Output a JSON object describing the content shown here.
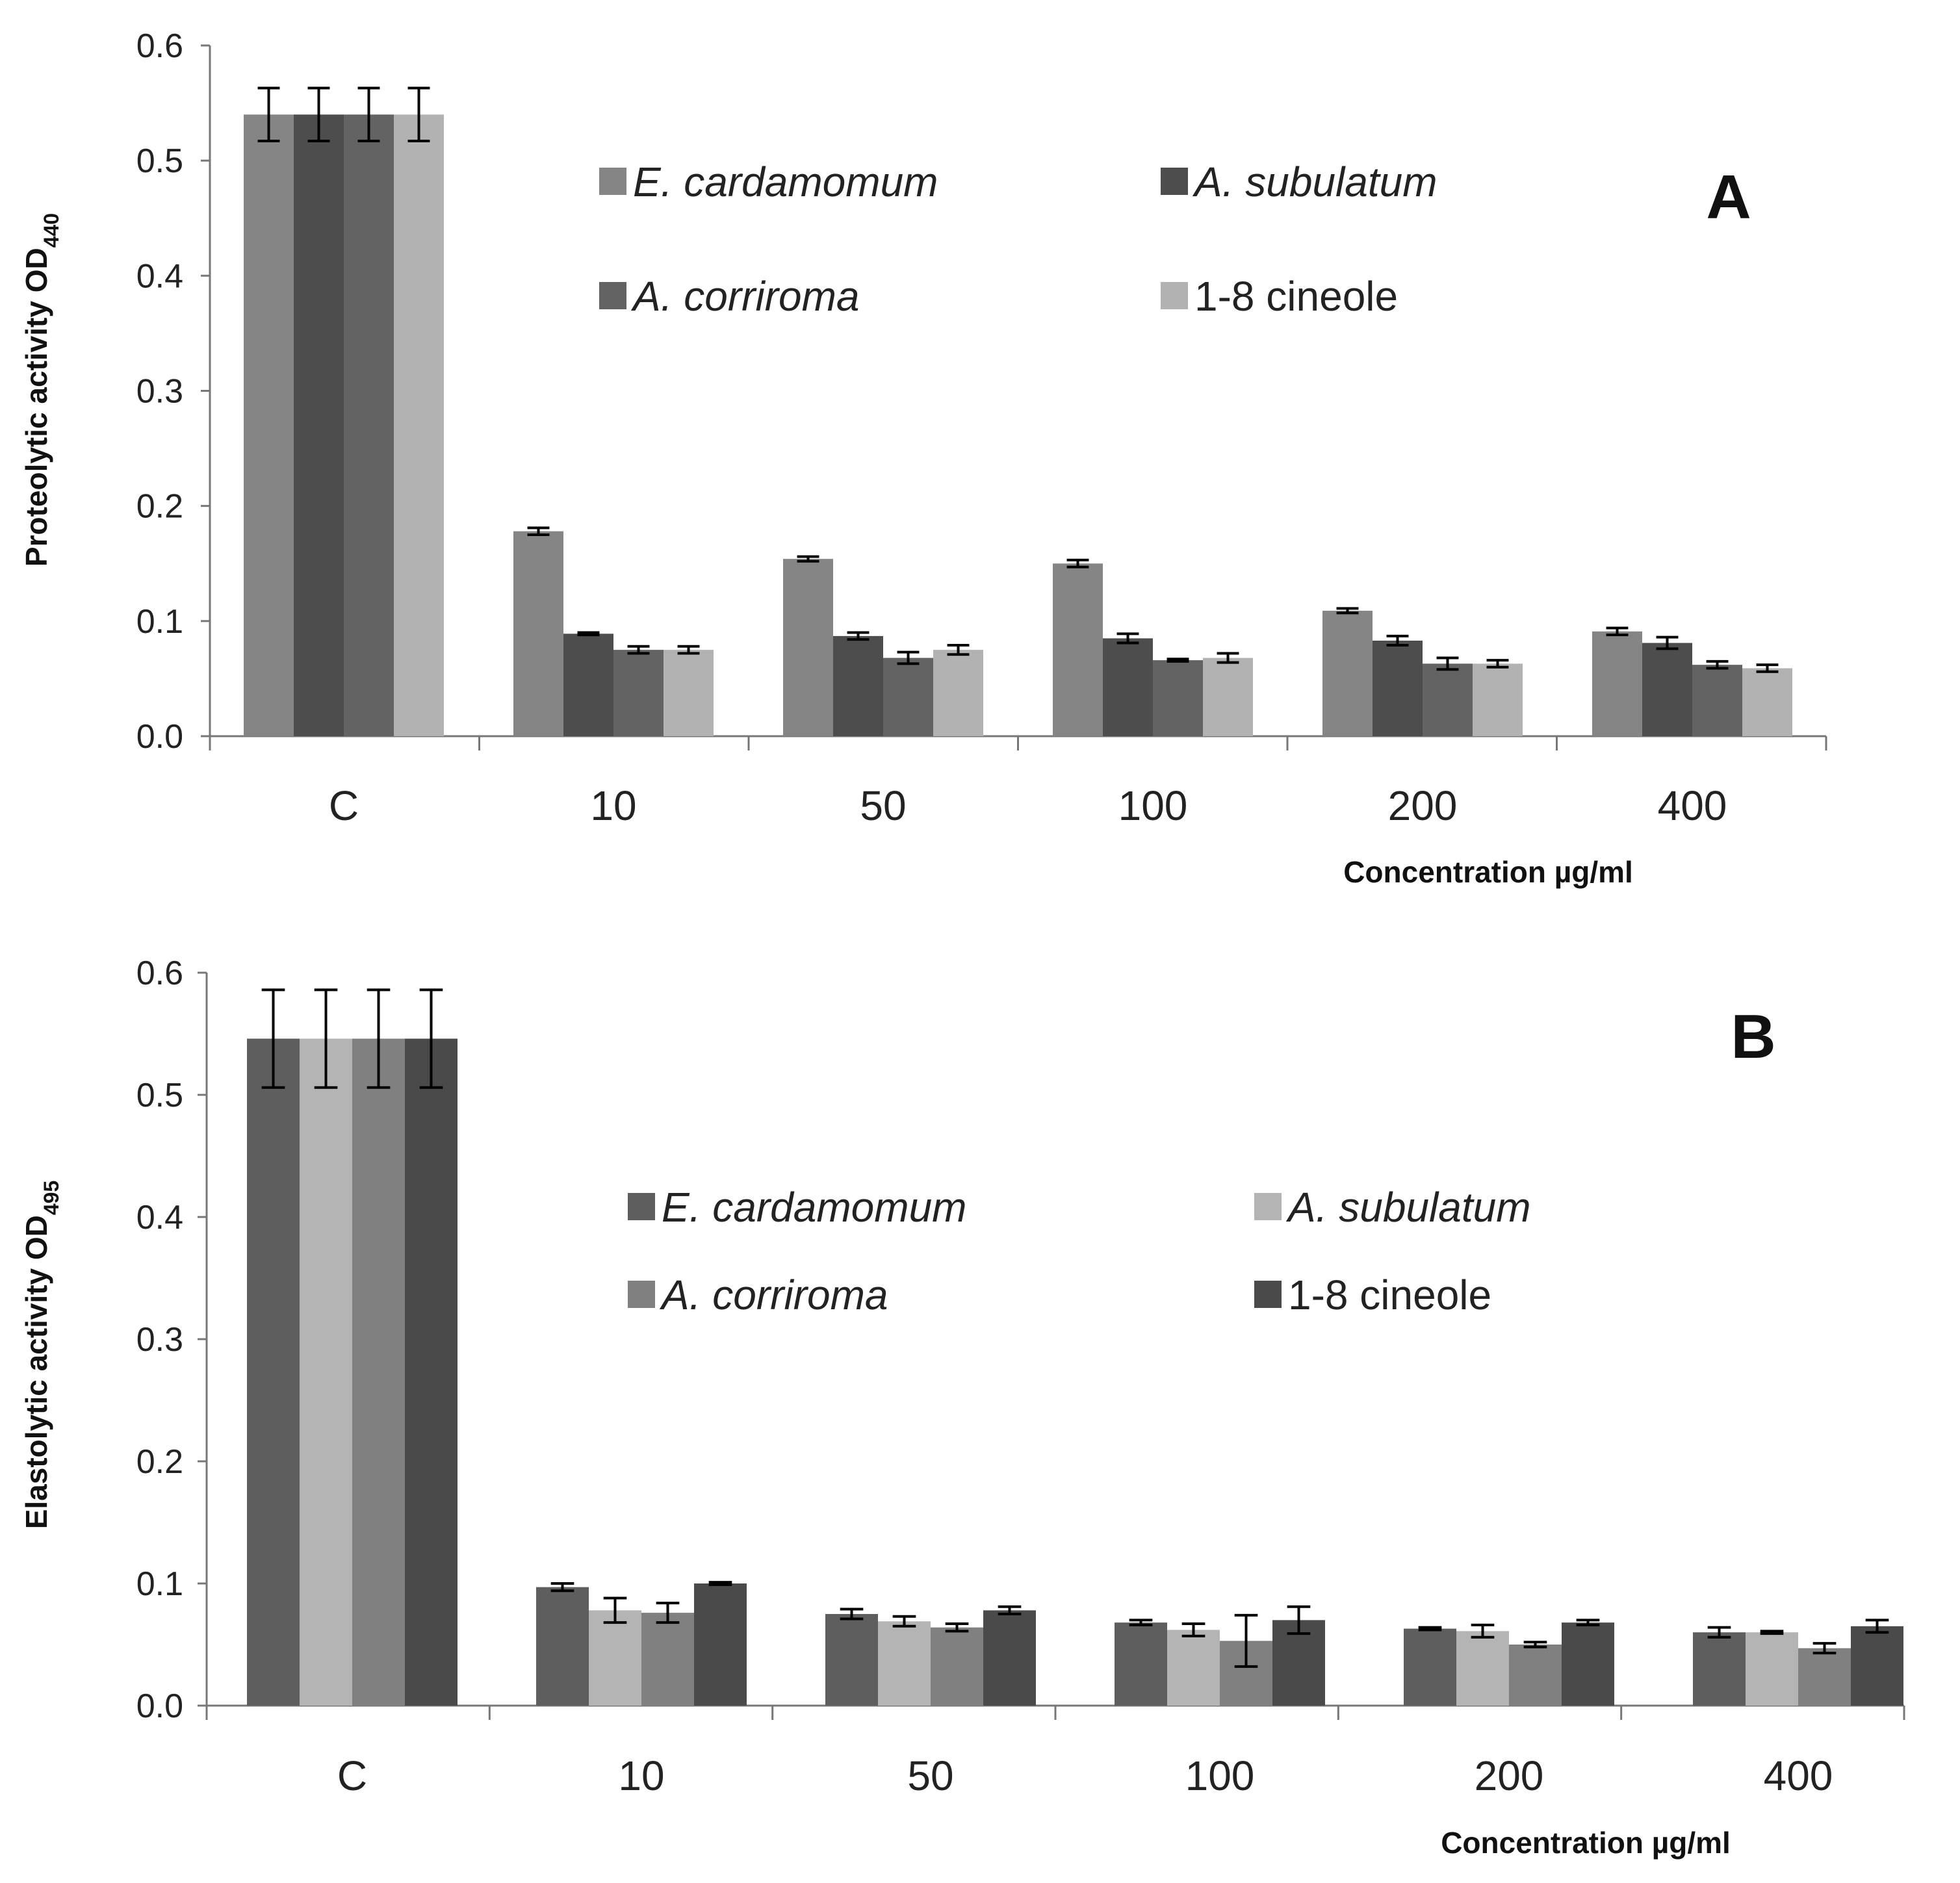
{
  "chart_data": [
    {
      "type": "bar",
      "panel": "A",
      "ylabel": "Proteolytic activity OD",
      "ylabel_sub": "440",
      "xlabel": "Concentration µg/ml",
      "ylim": [
        0,
        0.6
      ],
      "yticks": [
        "0.0",
        "0.1",
        "0.2",
        "0.3",
        "0.4",
        "0.5",
        "0.6"
      ],
      "categories": [
        "C",
        "10",
        "50",
        "100",
        "200",
        "400"
      ],
      "legend_position": "top-center",
      "series": [
        {
          "name": "E. cardamomum",
          "italic": true,
          "color": "#858585",
          "values": [
            0.54,
            0.178,
            0.154,
            0.15,
            0.109,
            0.091
          ],
          "errors": [
            0.023,
            0.003,
            0.002,
            0.003,
            0.002,
            0.003
          ]
        },
        {
          "name": "A. subulatum",
          "italic": true,
          "color": "#4d4d4d",
          "values": [
            0.54,
            0.089,
            0.087,
            0.085,
            0.083,
            0.081
          ],
          "errors": [
            0.023,
            0.001,
            0.003,
            0.004,
            0.004,
            0.005
          ]
        },
        {
          "name": "A. corriroma",
          "italic": true,
          "color": "#636363",
          "values": [
            0.54,
            0.075,
            0.068,
            0.066,
            0.063,
            0.062
          ],
          "errors": [
            0.023,
            0.003,
            0.005,
            0.001,
            0.005,
            0.003
          ]
        },
        {
          "name": "1-8 cineole",
          "italic": false,
          "color": "#b2b2b2",
          "values": [
            0.54,
            0.075,
            0.075,
            0.068,
            0.063,
            0.059
          ],
          "errors": [
            0.023,
            0.003,
            0.004,
            0.004,
            0.003,
            0.003
          ]
        }
      ]
    },
    {
      "type": "bar",
      "panel": "B",
      "ylabel": "Elastolytic activity OD",
      "ylabel_sub": "495",
      "xlabel": "Concentration µg/ml",
      "ylim": [
        0,
        0.6
      ],
      "yticks": [
        "0.0",
        "0.1",
        "0.2",
        "0.3",
        "0.4",
        "0.5",
        "0.6"
      ],
      "categories": [
        "C",
        "10",
        "50",
        "100",
        "200",
        "400"
      ],
      "legend_position": "center",
      "series": [
        {
          "name": "E. cardamomum",
          "italic": true,
          "color": "#5e5e5e",
          "values": [
            0.546,
            0.097,
            0.075,
            0.068,
            0.063,
            0.06
          ],
          "errors": [
            0.04,
            0.003,
            0.004,
            0.002,
            0.001,
            0.004
          ]
        },
        {
          "name": "A. subulatum",
          "italic": true,
          "color": "#b4b4b4",
          "values": [
            0.546,
            0.078,
            0.069,
            0.062,
            0.061,
            0.06
          ],
          "errors": [
            0.04,
            0.01,
            0.004,
            0.005,
            0.005,
            0.001
          ]
        },
        {
          "name": "A. corriroma",
          "italic": true,
          "color": "#808080",
          "values": [
            0.546,
            0.076,
            0.064,
            0.053,
            0.05,
            0.047
          ],
          "errors": [
            0.04,
            0.008,
            0.003,
            0.021,
            0.002,
            0.004
          ]
        },
        {
          "name": "1-8 cineole",
          "italic": false,
          "color": "#4a4a4a",
          "values": [
            0.546,
            0.1,
            0.078,
            0.07,
            0.068,
            0.065
          ],
          "errors": [
            0.04,
            0.001,
            0.003,
            0.011,
            0.002,
            0.005
          ]
        }
      ]
    }
  ]
}
